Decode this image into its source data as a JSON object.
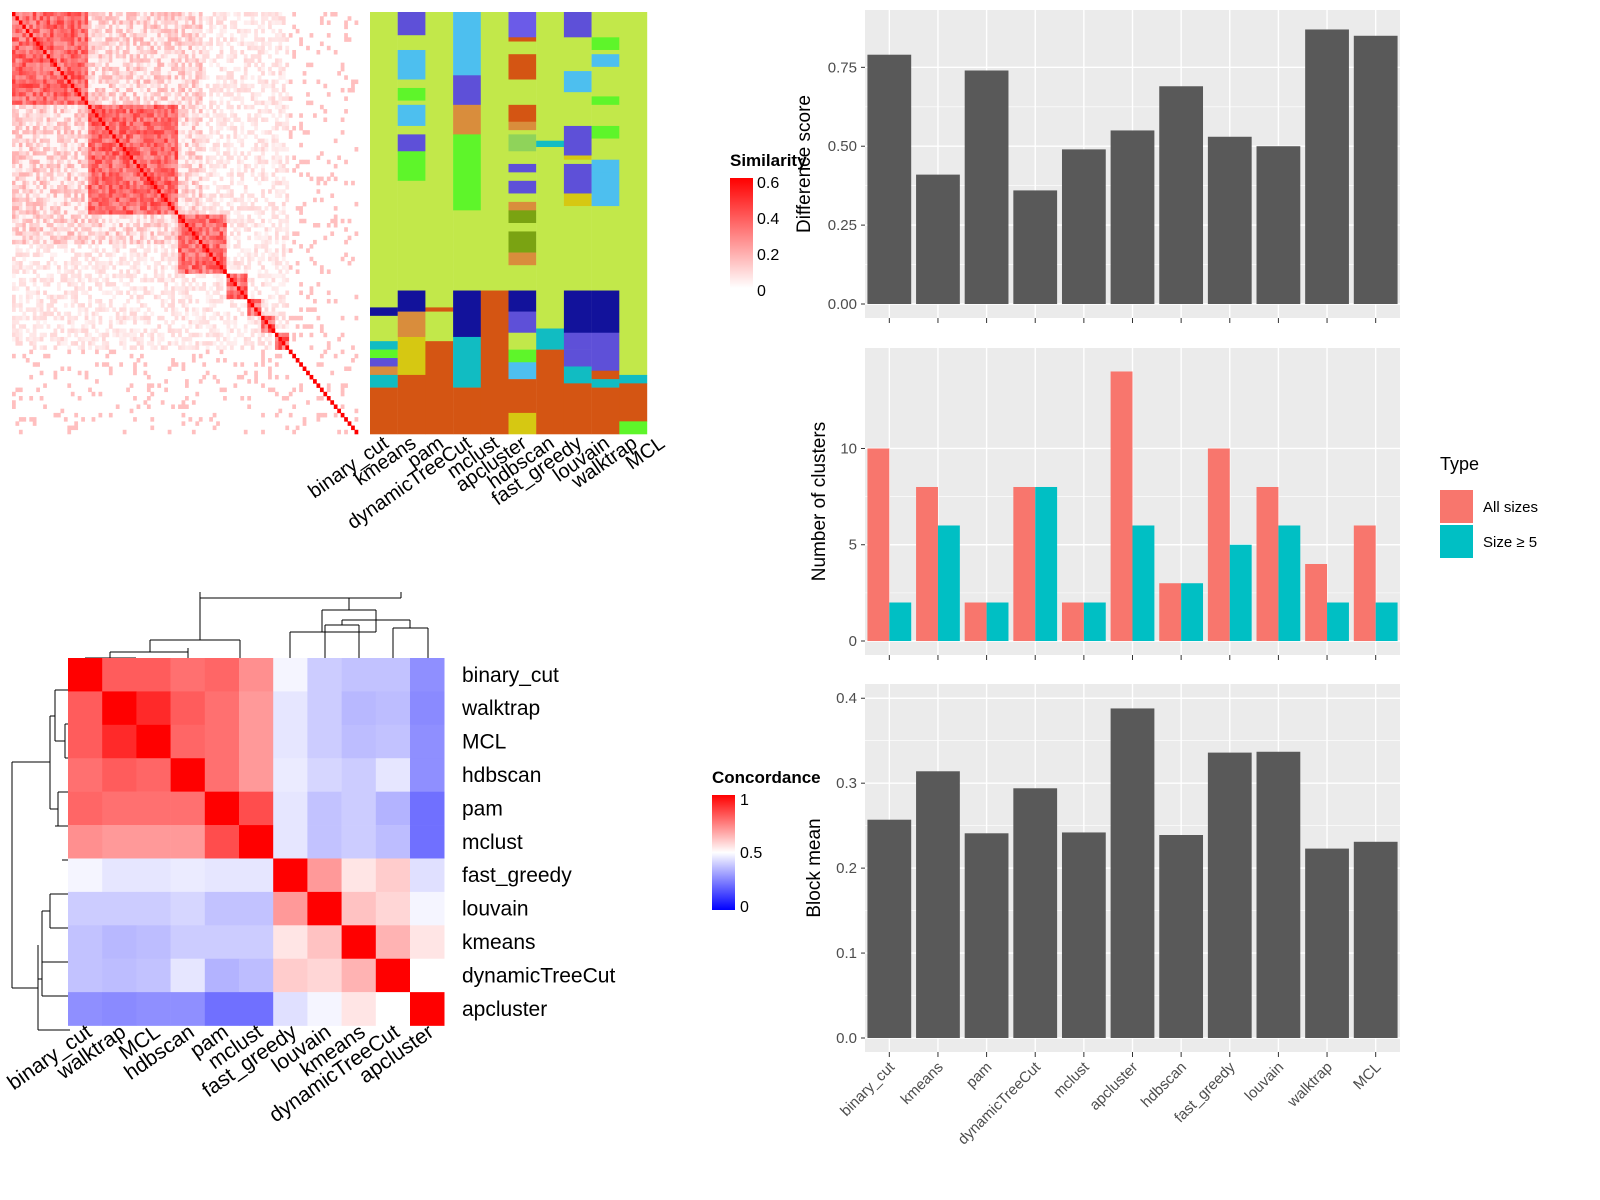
{
  "methods_heat": [
    "binary_cut",
    "kmeans",
    "pam",
    "dynamicTreeCut",
    "mclust",
    "apcluster",
    "hdbscan",
    "fast_greedy",
    "louvain",
    "walktrap",
    "MCL"
  ],
  "methods_bar": [
    "binary_cut",
    "kmeans",
    "pam",
    "dynamicTreeCut",
    "mclust",
    "apcluster",
    "hdbscan",
    "fast_greedy",
    "louvain",
    "walktrap",
    "MCL"
  ],
  "concordance_order": [
    "binary_cut",
    "walktrap",
    "MCL",
    "hdbscan",
    "pam",
    "mclust",
    "fast_greedy",
    "louvain",
    "kmeans",
    "dynamicTreeCut",
    "apcluster"
  ],
  "legend_similarity": {
    "title": "Similarity",
    "ticks": [
      "0.6",
      "0.4",
      "0.2",
      "0"
    ],
    "colors": {
      "low": "#ffffff",
      "high": "#ff0000"
    }
  },
  "legend_concordance": {
    "title": "Concordance",
    "ticks": [
      "1",
      "0.5",
      "0"
    ],
    "colors": {
      "low": "#0000ff",
      "mid": "#ffffff",
      "high": "#ff0000"
    }
  },
  "legend_type": {
    "title": "Type",
    "items": [
      {
        "label": "All sizes",
        "color": "#F8766D"
      },
      {
        "label": "Size ≥ 5",
        "color": "#00BFC4"
      }
    ]
  },
  "chart_data": [
    {
      "type": "heatmap",
      "title": "",
      "description_legend": "Similarity",
      "legend_range": [
        0,
        0.6
      ],
      "n_terms": 100,
      "clusters_by_method_columns": [
        "binary_cut",
        "kmeans",
        "pam",
        "dynamicTreeCut",
        "mclust",
        "apcluster",
        "hdbscan",
        "fast_greedy",
        "louvain",
        "walktrap",
        "MCL"
      ]
    },
    {
      "type": "heatmap",
      "title": "",
      "legend_title": "Concordance",
      "legend_range": [
        0,
        1
      ],
      "rows": [
        "binary_cut",
        "walktrap",
        "MCL",
        "hdbscan",
        "pam",
        "mclust",
        "fast_greedy",
        "louvain",
        "kmeans",
        "dynamicTreeCut",
        "apcluster"
      ],
      "cols": [
        "binary_cut",
        "walktrap",
        "MCL",
        "hdbscan",
        "pam",
        "mclust",
        "fast_greedy",
        "louvain",
        "kmeans",
        "dynamicTreeCut",
        "apcluster"
      ],
      "values": [
        [
          1.0,
          0.82,
          0.82,
          0.78,
          0.8,
          0.72,
          0.48,
          0.4,
          0.38,
          0.38,
          0.28
        ],
        [
          0.82,
          1.0,
          0.92,
          0.82,
          0.78,
          0.7,
          0.45,
          0.4,
          0.36,
          0.37,
          0.27
        ],
        [
          0.82,
          0.92,
          1.0,
          0.8,
          0.78,
          0.7,
          0.45,
          0.4,
          0.37,
          0.38,
          0.28
        ],
        [
          0.78,
          0.82,
          0.8,
          1.0,
          0.78,
          0.7,
          0.46,
          0.42,
          0.4,
          0.45,
          0.28
        ],
        [
          0.8,
          0.78,
          0.78,
          0.78,
          1.0,
          0.85,
          0.45,
          0.38,
          0.4,
          0.35,
          0.22
        ],
        [
          0.72,
          0.7,
          0.7,
          0.7,
          0.85,
          1.0,
          0.45,
          0.38,
          0.4,
          0.37,
          0.22
        ],
        [
          0.48,
          0.45,
          0.45,
          0.46,
          0.45,
          0.45,
          1.0,
          0.7,
          0.55,
          0.6,
          0.44
        ],
        [
          0.4,
          0.4,
          0.4,
          0.42,
          0.38,
          0.38,
          0.7,
          1.0,
          0.62,
          0.58,
          0.48
        ],
        [
          0.38,
          0.36,
          0.37,
          0.4,
          0.4,
          0.4,
          0.55,
          0.62,
          1.0,
          0.65,
          0.55
        ],
        [
          0.38,
          0.37,
          0.38,
          0.45,
          0.35,
          0.37,
          0.6,
          0.58,
          0.65,
          1.0,
          0.5
        ],
        [
          0.28,
          0.27,
          0.28,
          0.28,
          0.22,
          0.22,
          0.44,
          0.48,
          0.55,
          0.5,
          1.0
        ]
      ]
    },
    {
      "type": "bar",
      "title": "",
      "xlabel": "",
      "ylabel": "Difference score",
      "categories": [
        "binary_cut",
        "kmeans",
        "pam",
        "dynamicTreeCut",
        "mclust",
        "apcluster",
        "hdbscan",
        "fast_greedy",
        "louvain",
        "walktrap",
        "MCL"
      ],
      "values": [
        0.79,
        0.41,
        0.74,
        0.36,
        0.49,
        0.55,
        0.69,
        0.53,
        0.5,
        0.87,
        0.85
      ],
      "ylim": [
        0,
        0.9
      ],
      "yticks": [
        "0.00",
        "0.25",
        "0.50",
        "0.75"
      ],
      "ytick_values": [
        0,
        0.25,
        0.5,
        0.75
      ]
    },
    {
      "type": "bar",
      "title": "",
      "xlabel": "",
      "ylabel": "Number of clusters",
      "categories": [
        "binary_cut",
        "kmeans",
        "pam",
        "dynamicTreeCut",
        "mclust",
        "apcluster",
        "hdbscan",
        "fast_greedy",
        "louvain",
        "walktrap",
        "MCL"
      ],
      "series": [
        {
          "name": "All sizes",
          "values": [
            10,
            8,
            2,
            8,
            2,
            14,
            3,
            10,
            8,
            4,
            6
          ]
        },
        {
          "name": "Size ≥ 5",
          "values": [
            2,
            6,
            2,
            8,
            2,
            6,
            3,
            5,
            6,
            2,
            2
          ]
        }
      ],
      "ylim": [
        0,
        14.7
      ],
      "yticks": [
        "0",
        "5",
        "10"
      ],
      "ytick_values": [
        0,
        5,
        10
      ],
      "legend": "right"
    },
    {
      "type": "bar",
      "title": "",
      "xlabel": "",
      "ylabel": "Block mean",
      "categories": [
        "binary_cut",
        "kmeans",
        "pam",
        "dynamicTreeCut",
        "mclust",
        "apcluster",
        "hdbscan",
        "fast_greedy",
        "louvain",
        "walktrap",
        "MCL"
      ],
      "values": [
        0.257,
        0.314,
        0.241,
        0.294,
        0.242,
        0.388,
        0.239,
        0.336,
        0.337,
        0.223,
        0.231
      ],
      "ylim": [
        0,
        0.405
      ],
      "yticks": [
        "0.0",
        "0.1",
        "0.2",
        "0.3",
        "0.4"
      ],
      "ytick_values": [
        0,
        0.1,
        0.2,
        0.3,
        0.4
      ]
    }
  ]
}
